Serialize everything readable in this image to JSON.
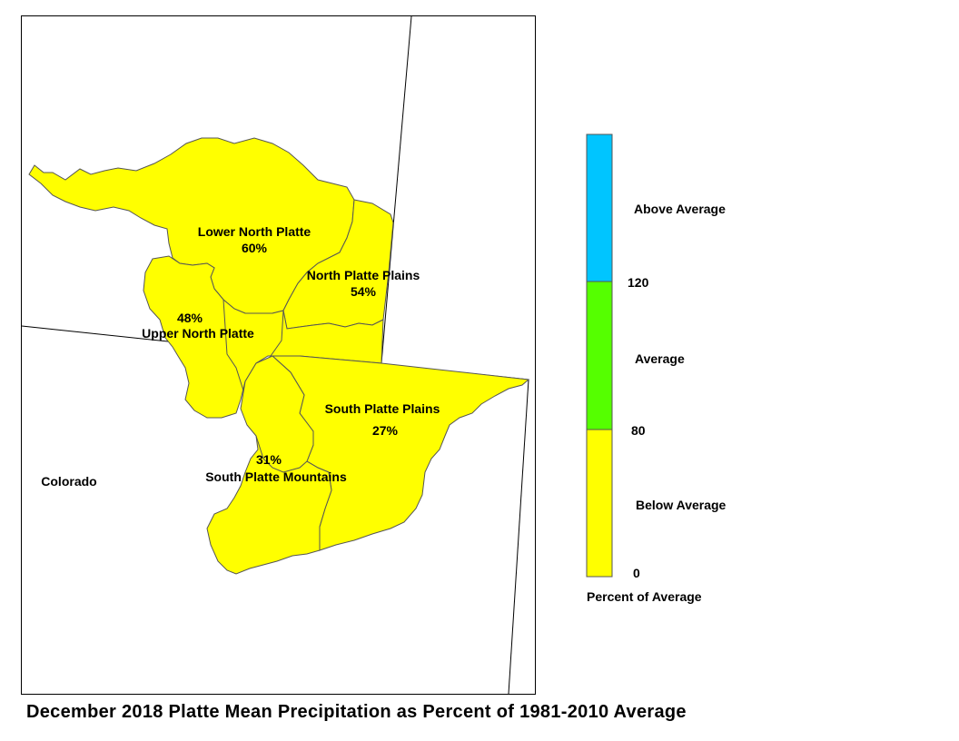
{
  "title": "December 2018 Platte Mean Precipitation as Percent of 1981-2010 Average",
  "state_label": "Colorado",
  "colors": {
    "below_average": "#ffff00",
    "average": "#55ff00",
    "above_average": "#00c5ff",
    "basin_border": "#555555",
    "frame": "#000000"
  },
  "basins": [
    {
      "name": "Lower North Platte",
      "value": "60%",
      "category": "below_average"
    },
    {
      "name": "North Platte Plains",
      "value": "54%",
      "category": "below_average"
    },
    {
      "name": "Upper North Platte",
      "value": "48%",
      "category": "below_average"
    },
    {
      "name": "South Platte Plains",
      "value": "27%",
      "category": "below_average"
    },
    {
      "name": "South Platte Mountains",
      "value": "31%",
      "category": "below_average"
    }
  ],
  "legend": {
    "title": "Percent of Average",
    "classes": [
      {
        "label": "Above Average",
        "color": "#00c5ff"
      },
      {
        "label": "Average",
        "color": "#55ff00"
      },
      {
        "label": "Below Average",
        "color": "#ffff00"
      }
    ],
    "breaks": [
      "120",
      "80",
      "0"
    ]
  }
}
